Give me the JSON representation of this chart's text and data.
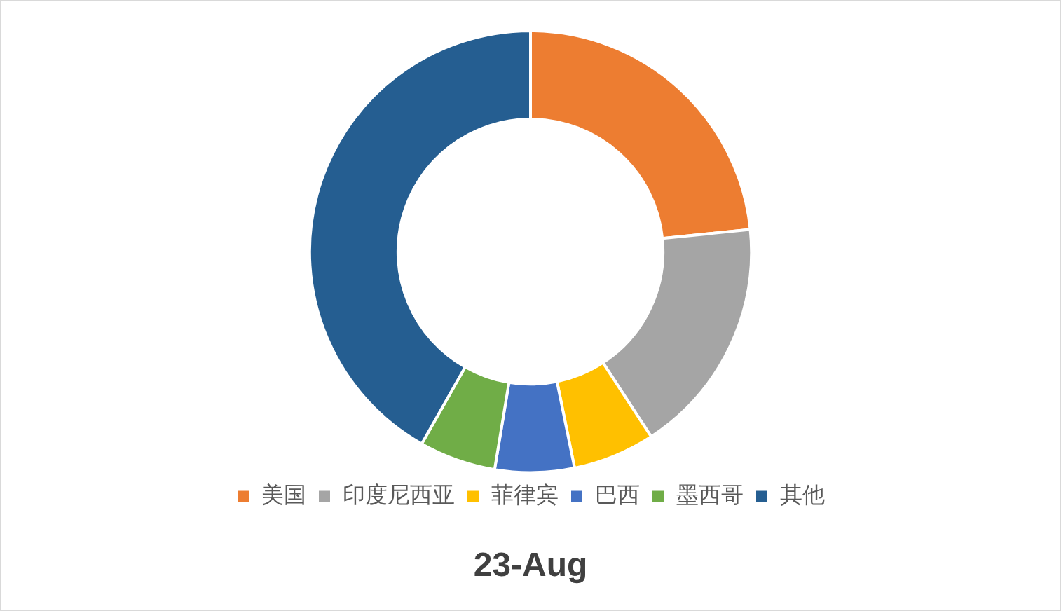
{
  "chart_data": {
    "type": "donut",
    "title": "23-Aug",
    "categories": [
      "美国",
      "印度尼西亚",
      "菲律宾",
      "巴西",
      "墨西哥",
      "其他"
    ],
    "values": [
      23.4,
      17.4,
      6.0,
      5.8,
      5.6,
      41.8
    ],
    "colors": [
      "#ed7d31",
      "#a5a5a5",
      "#ffc000",
      "#4472c4",
      "#70ad47",
      "#255e91"
    ],
    "legend": "bottom"
  }
}
